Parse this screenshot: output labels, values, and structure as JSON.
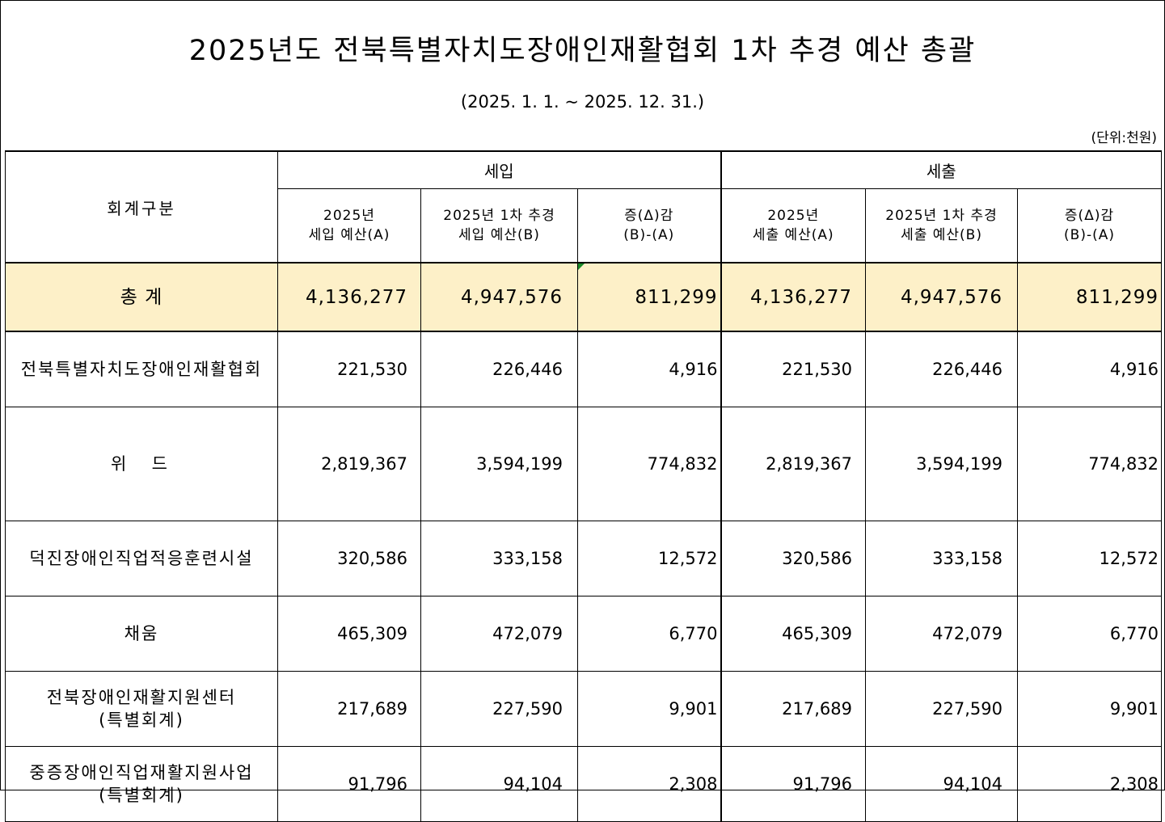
{
  "title": "2025년도 전북특별자치도장애인재활협회 1차 추경 예산 총괄",
  "period": "(2025. 1. 1. ~ 2025. 12. 31.)",
  "unit": "(단위:천원)",
  "table": {
    "header": {
      "category": "회계구분",
      "revenue_group": "세입",
      "expense_group": "세출",
      "revenue_cols": [
        {
          "line1": "2025년",
          "line2": "세입 예산(A)"
        },
        {
          "line1": "2025년 1차 추경",
          "line2": "세입 예산(B)"
        },
        {
          "line1": "증(Δ)감",
          "line2": "(B)-(A)"
        }
      ],
      "expense_cols": [
        {
          "line1": "2025년",
          "line2": "세출 예산(A)"
        },
        {
          "line1": "2025년 1차 추경",
          "line2": "세출 예산(B)"
        },
        {
          "line1": "증(Δ)감",
          "line2": "(B)-(A)"
        }
      ]
    },
    "total": {
      "label": "총 계",
      "values": [
        "4,136,277",
        "4,947,576",
        "811,299",
        "4,136,277",
        "4,947,576",
        "811,299"
      ]
    },
    "rows": [
      {
        "line1": "전북특별자치도장애인재활협회",
        "line2": "",
        "values": [
          "221,530",
          "226,446",
          "4,916",
          "221,530",
          "226,446",
          "4,916"
        ]
      },
      {
        "line1": "위  드",
        "line2": "",
        "values": [
          "2,819,367",
          "3,594,199",
          "774,832",
          "2,819,367",
          "3,594,199",
          "774,832"
        ]
      },
      {
        "line1": "덕진장애인직업적응훈련시설",
        "line2": "",
        "values": [
          "320,586",
          "333,158",
          "12,572",
          "320,586",
          "333,158",
          "12,572"
        ]
      },
      {
        "line1": "채움",
        "line2": "",
        "values": [
          "465,309",
          "472,079",
          "6,770",
          "465,309",
          "472,079",
          "6,770"
        ]
      },
      {
        "line1": "전북장애인재활지원센터",
        "line2": "(특별회계)",
        "values": [
          "217,689",
          "227,590",
          "9,901",
          "217,689",
          "227,590",
          "9,901"
        ]
      },
      {
        "line1": "중증장애인직업재활지원사업",
        "line2": "(특별회계)",
        "values": [
          "91,796",
          "94,104",
          "2,308",
          "91,796",
          "94,104",
          "2,308"
        ]
      }
    ]
  },
  "colors": {
    "total_row_bg": "#fdf0c8",
    "border": "#000000",
    "cell_marker": "#1a8a2a"
  }
}
